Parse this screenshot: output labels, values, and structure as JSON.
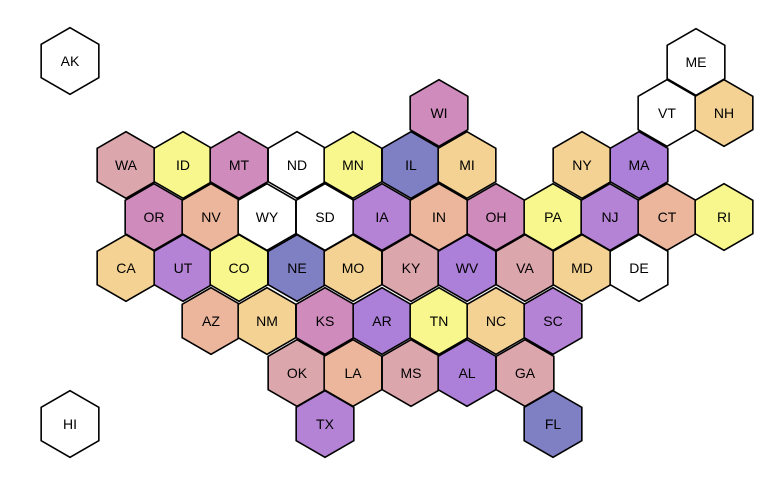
{
  "colors": {
    "white": "#ffffff",
    "pink": "#dca6ad",
    "yellow": "#f7f78e",
    "mauve": "#cf8bbc",
    "purple": "#b483d6",
    "blue": "#7f7fc4",
    "peach": "#ebb69c",
    "tan": "#f4d293",
    "violet": "#ac7fd8"
  },
  "states": [
    {
      "id": "AK",
      "label": "AK",
      "color": "white"
    },
    {
      "id": "HI",
      "label": "HI",
      "color": "white"
    },
    {
      "id": "ME",
      "label": "ME",
      "color": "white"
    },
    {
      "id": "VT",
      "label": "VT",
      "color": "white"
    },
    {
      "id": "NH",
      "label": "NH",
      "color": "tan"
    },
    {
      "id": "WI",
      "label": "WI",
      "color": "mauve"
    },
    {
      "id": "WA",
      "label": "WA",
      "color": "pink"
    },
    {
      "id": "ID",
      "label": "ID",
      "color": "yellow"
    },
    {
      "id": "MT",
      "label": "MT",
      "color": "mauve"
    },
    {
      "id": "ND",
      "label": "ND",
      "color": "white"
    },
    {
      "id": "MN",
      "label": "MN",
      "color": "yellow"
    },
    {
      "id": "IL",
      "label": "IL",
      "color": "blue"
    },
    {
      "id": "MI",
      "label": "MI",
      "color": "tan"
    },
    {
      "id": "NY",
      "label": "NY",
      "color": "tan"
    },
    {
      "id": "MA",
      "label": "MA",
      "color": "violet"
    },
    {
      "id": "OR",
      "label": "OR",
      "color": "mauve"
    },
    {
      "id": "NV",
      "label": "NV",
      "color": "peach"
    },
    {
      "id": "WY",
      "label": "WY",
      "color": "white"
    },
    {
      "id": "SD",
      "label": "SD",
      "color": "white"
    },
    {
      "id": "IA",
      "label": "IA",
      "color": "purple"
    },
    {
      "id": "IN",
      "label": "IN",
      "color": "peach"
    },
    {
      "id": "OH",
      "label": "OH",
      "color": "mauve"
    },
    {
      "id": "PA",
      "label": "PA",
      "color": "yellow"
    },
    {
      "id": "NJ",
      "label": "NJ",
      "color": "purple"
    },
    {
      "id": "CT",
      "label": "CT",
      "color": "peach"
    },
    {
      "id": "RI",
      "label": "RI",
      "color": "yellow"
    },
    {
      "id": "CA",
      "label": "CA",
      "color": "tan"
    },
    {
      "id": "UT",
      "label": "UT",
      "color": "purple"
    },
    {
      "id": "CO",
      "label": "CO",
      "color": "yellow"
    },
    {
      "id": "NE",
      "label": "NE",
      "color": "blue"
    },
    {
      "id": "MO",
      "label": "MO",
      "color": "tan"
    },
    {
      "id": "KY",
      "label": "KY",
      "color": "pink"
    },
    {
      "id": "WV",
      "label": "WV",
      "color": "violet"
    },
    {
      "id": "VA",
      "label": "VA",
      "color": "pink"
    },
    {
      "id": "MD",
      "label": "MD",
      "color": "tan"
    },
    {
      "id": "DE",
      "label": "DE",
      "color": "white"
    },
    {
      "id": "AZ",
      "label": "AZ",
      "color": "peach"
    },
    {
      "id": "NM",
      "label": "NM",
      "color": "tan"
    },
    {
      "id": "KS",
      "label": "KS",
      "color": "mauve"
    },
    {
      "id": "AR",
      "label": "AR",
      "color": "violet"
    },
    {
      "id": "TN",
      "label": "TN",
      "color": "yellow"
    },
    {
      "id": "NC",
      "label": "NC",
      "color": "tan"
    },
    {
      "id": "SC",
      "label": "SC",
      "color": "purple"
    },
    {
      "id": "OK",
      "label": "OK",
      "color": "pink"
    },
    {
      "id": "LA",
      "label": "LA",
      "color": "peach"
    },
    {
      "id": "MS",
      "label": "MS",
      "color": "pink"
    },
    {
      "id": "AL",
      "label": "AL",
      "color": "violet"
    },
    {
      "id": "GA",
      "label": "GA",
      "color": "pink"
    },
    {
      "id": "TX",
      "label": "TX",
      "color": "purple"
    },
    {
      "id": "FL",
      "label": "FL",
      "color": "blue"
    }
  ]
}
